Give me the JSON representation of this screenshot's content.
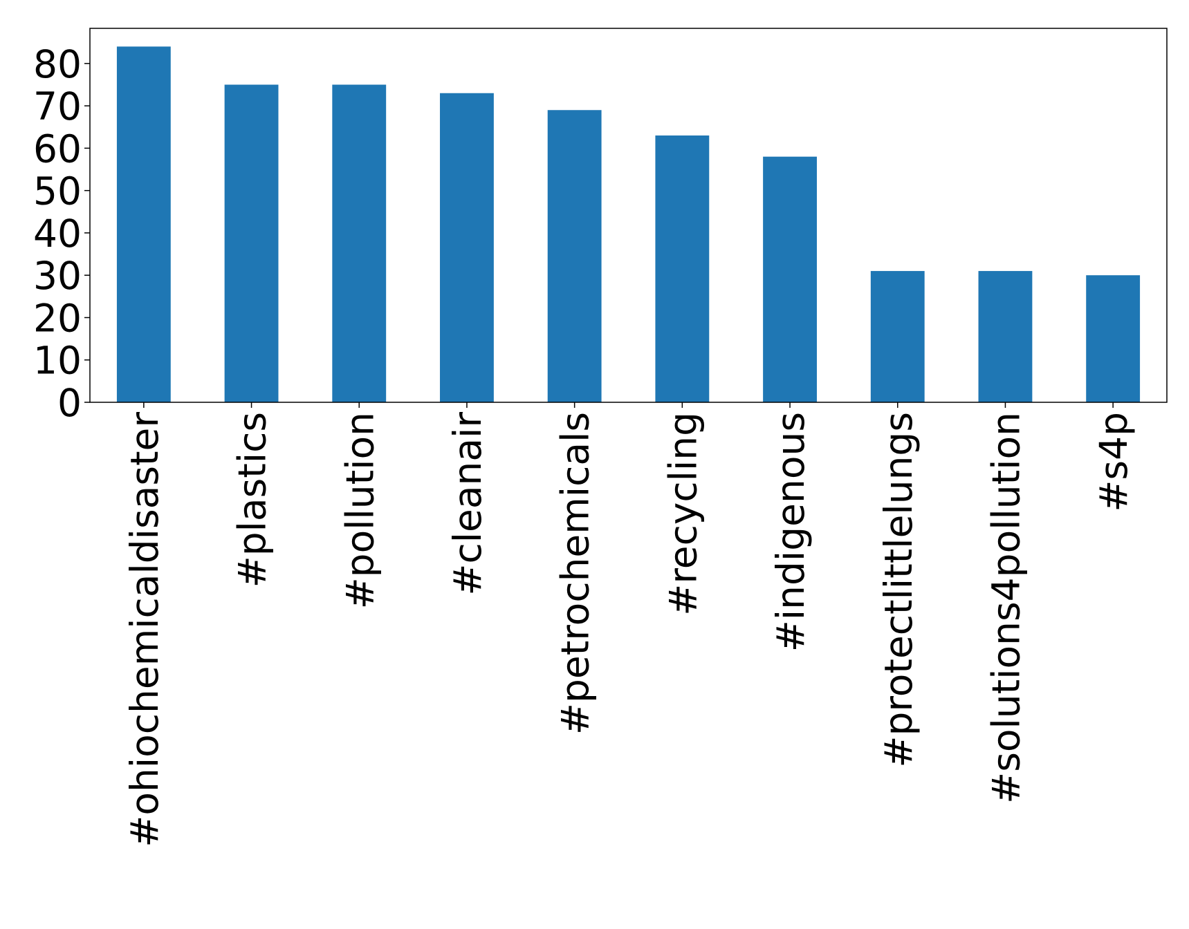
{
  "chart_data": {
    "type": "bar",
    "categories": [
      "#ohiochemicaldisaster",
      "#plastics",
      "#pollution",
      "#cleanair",
      "#petrochemicals",
      "#recycling",
      "#indigenous",
      "#protectlittlelungs",
      "#solutions4pollution",
      "#s4p"
    ],
    "values": [
      84,
      75,
      75,
      73,
      69,
      63,
      58,
      31,
      31,
      30
    ],
    "color": "#1f77b4",
    "ylim": [
      0,
      88.3
    ],
    "yticks": [
      0,
      10,
      20,
      30,
      40,
      50,
      60,
      70,
      80
    ],
    "grid": false
  }
}
